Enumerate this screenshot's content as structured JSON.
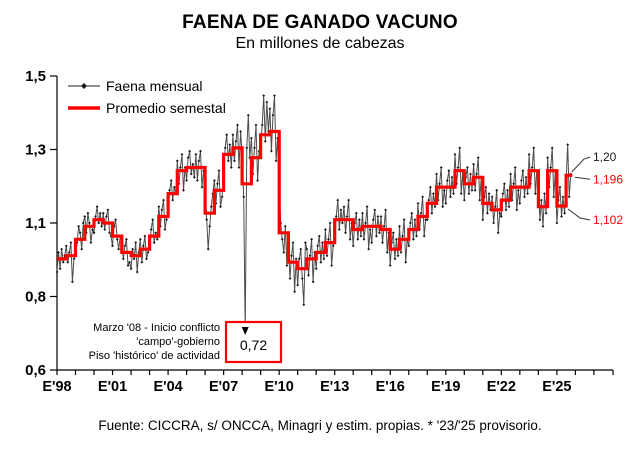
{
  "title": "FAENA DE GANADO VACUNO",
  "subtitle": "En millones de cabezas",
  "footer": "Fuente: CICCRA, s/ ONCCA, Minagri y estim. propias. * '23/'25 provisorio.",
  "colors": {
    "background": "#FFFFFF",
    "monthly_line": "#4d4d4d",
    "monthly_marker": "#1a1a1a",
    "semester_line": "#FF0000",
    "axis": "#000000",
    "annotation_box_border": "#FF0000",
    "callout_red": "#FF0000",
    "callout_black": "#1a1a1a"
  },
  "chart_data": {
    "type": "line",
    "title": "FAENA DE GANADO VACUNO",
    "subtitle": "En millones de cabezas",
    "ylabel": "millones de cabezas",
    "xlabel": "",
    "grid": false,
    "legend_position": "top-left",
    "legend": [
      {
        "label": "Faena mensual",
        "style": "thin-gray-line-with-marker"
      },
      {
        "label": "Promedio semestal",
        "style": "thick-red-line"
      }
    ],
    "y_axis": {
      "ticks": [
        {
          "value": 1.5,
          "label": "1,5"
        },
        {
          "value": 1.3,
          "label": "1,3"
        },
        {
          "value": 1.1,
          "label": "1,1"
        },
        {
          "value": 0.8,
          "label": "0,8"
        },
        {
          "value": 0.6,
          "label": "0,6"
        }
      ],
      "min": 0.6,
      "max": 1.5
    },
    "x_axis": {
      "start_year": 1998,
      "end_year": 2027.6,
      "minor_tick_every_years": 1,
      "labels": [
        {
          "year": 1998,
          "label": "E'98"
        },
        {
          "year": 2001,
          "label": "E'01"
        },
        {
          "year": 2004,
          "label": "E'04"
        },
        {
          "year": 2007,
          "label": "E'07"
        },
        {
          "year": 2010,
          "label": "E'10"
        },
        {
          "year": 2013,
          "label": "E'13"
        },
        {
          "year": 2016,
          "label": "E'16"
        },
        {
          "year": 2019,
          "label": "E'19"
        },
        {
          "year": 2022,
          "label": "E'22"
        },
        {
          "year": 2025,
          "label": "E'25"
        }
      ]
    },
    "series": [
      {
        "name": "Faena mensual",
        "kind": "monthly",
        "start_month": "1998-01",
        "values": [
          0.9,
          0.96,
          0.91,
          0.97,
          0.93,
          0.95,
          0.98,
          0.93,
          0.96,
          0.99,
          0.87,
          0.94,
          0.95,
          0.99,
          1.04,
          1.02,
          0.97,
          1.05,
          1.07,
          1.02,
          1.08,
          1.05,
          0.99,
          1.03,
          1.02,
          1.07,
          1.1,
          1.05,
          1.08,
          1.04,
          1.08,
          1.03,
          1.07,
          1.09,
          1.02,
          1.01,
          0.98,
          1.04,
          1.06,
          1.0,
          0.97,
          1.01,
          0.99,
          0.94,
          0.98,
          1.0,
          0.92,
          0.93,
          0.91,
          0.97,
          0.94,
          0.99,
          0.9,
          0.96,
          1.0,
          0.93,
          0.98,
          1.01,
          0.94,
          0.96,
          0.97,
          1.03,
          1.06,
          0.99,
          1.02,
          1.0,
          1.1,
          1.04,
          1.09,
          1.12,
          1.03,
          1.06,
          1.09,
          1.15,
          1.18,
          1.12,
          1.16,
          1.14,
          1.24,
          1.17,
          1.22,
          1.26,
          1.15,
          1.22,
          1.18,
          1.25,
          1.27,
          1.2,
          1.23,
          1.19,
          1.26,
          1.18,
          1.24,
          1.27,
          1.16,
          1.21,
          1.15,
          1.06,
          0.97,
          1.04,
          1.1,
          1.14,
          1.18,
          1.11,
          1.17,
          1.21,
          1.1,
          1.13,
          1.21,
          1.28,
          1.32,
          1.24,
          1.29,
          1.22,
          1.32,
          1.24,
          1.3,
          1.35,
          1.22,
          1.33,
          1.26,
          1.13,
          0.72,
          1.28,
          1.38,
          1.25,
          1.31,
          1.2,
          1.28,
          1.35,
          1.18,
          1.27,
          1.28,
          1.35,
          1.44,
          1.3,
          1.42,
          1.33,
          1.4,
          1.27,
          1.38,
          1.44,
          1.24,
          1.31,
          1.16,
          1.05,
          1.0,
          0.96,
          1.04,
          0.92,
          0.98,
          0.88,
          0.95,
          0.99,
          0.84,
          0.94,
          0.86,
          0.94,
          0.97,
          0.88,
          0.8,
          0.99,
          0.97,
          0.89,
          0.95,
          1.0,
          0.87,
          0.96,
          0.91,
          0.98,
          1.01,
          0.93,
          0.99,
          0.94,
          1.03,
          0.95,
          1.0,
          1.05,
          0.92,
          0.98,
          1.0,
          1.07,
          1.12,
          1.03,
          1.09,
          1.05,
          1.1,
          1.02,
          1.07,
          1.12,
          1.0,
          1.05,
          0.98,
          1.05,
          1.08,
          1.0,
          1.06,
          1.01,
          1.08,
          1.0,
          1.05,
          1.1,
          0.97,
          1.03,
          0.99,
          1.06,
          1.09,
          1.01,
          1.07,
          1.02,
          1.07,
          0.99,
          1.04,
          1.09,
          0.96,
          1.02,
          0.92,
          0.99,
          1.02,
          0.94,
          1.0,
          0.95,
          1.04,
          0.96,
          1.01,
          1.06,
          0.93,
          1.0,
          0.98,
          1.05,
          1.08,
          1.0,
          1.06,
          1.01,
          1.11,
          1.03,
          1.08,
          1.13,
          1.01,
          1.06,
          1.06,
          1.12,
          1.16,
          1.08,
          1.14,
          1.1,
          1.2,
          1.12,
          1.17,
          1.22,
          1.1,
          1.15,
          1.11,
          1.18,
          1.21,
          1.13,
          1.19,
          1.14,
          1.26,
          1.17,
          1.22,
          1.28,
          1.14,
          1.21,
          1.12,
          1.19,
          1.22,
          1.14,
          1.2,
          1.15,
          1.23,
          1.15,
          1.2,
          1.25,
          1.12,
          1.19,
          1.06,
          1.13,
          1.16,
          1.08,
          1.14,
          1.09,
          1.13,
          1.05,
          1.1,
          1.15,
          1.02,
          1.08,
          1.07,
          1.14,
          1.17,
          1.09,
          1.15,
          1.1,
          1.2,
          1.12,
          1.17,
          1.22,
          1.09,
          1.15,
          1.11,
          1.18,
          1.21,
          1.13,
          1.19,
          1.14,
          1.26,
          1.17,
          1.22,
          1.28,
          1.14,
          1.21,
          1.16,
          1.06,
          1.12,
          1.04,
          1.14,
          1.08,
          1.25,
          1.16,
          1.22,
          1.28,
          1.13,
          1.21,
          1.05,
          1.12,
          1.16,
          1.07,
          1.13,
          1.08,
          1.18,
          1.29,
          1.13,
          1.2
        ]
      },
      {
        "name": "Promedio semestal",
        "kind": "semester_step",
        "start_semester": "1998-H1",
        "values": [
          0.94,
          0.95,
          1.0,
          1.04,
          1.06,
          1.05,
          1.01,
          0.96,
          0.95,
          0.97,
          1.01,
          1.07,
          1.14,
          1.21,
          1.22,
          1.22,
          1.08,
          1.15,
          1.26,
          1.28,
          1.17,
          1.25,
          1.32,
          1.33,
          1.02,
          0.93,
          0.91,
          0.94,
          0.96,
          0.99,
          1.06,
          1.06,
          1.03,
          1.04,
          1.04,
          1.03,
          0.97,
          1.0,
          1.03,
          1.07,
          1.11,
          1.16,
          1.16,
          1.21,
          1.17,
          1.19,
          1.11,
          1.09,
          1.12,
          1.16,
          1.16,
          1.21,
          1.1,
          1.21,
          1.102,
          1.196
        ],
        "last_semester_months": 4
      }
    ],
    "annotations": {
      "event": {
        "text_lines": [
          "Marzo '08 - Inicio conflicto",
          "'campo'-gobierno",
          "Piso 'histórico' de actividad"
        ],
        "boxed_value_label": "0,72",
        "value": 0.72,
        "month": "2008-03"
      },
      "callouts": [
        {
          "label": "1,20",
          "color": "black",
          "refers_to": "last monthly value"
        },
        {
          "label": "1,196",
          "color": "red",
          "refers_to": "last semester average"
        },
        {
          "label": "1,102",
          "color": "red",
          "refers_to": "previous semester average"
        }
      ]
    }
  }
}
